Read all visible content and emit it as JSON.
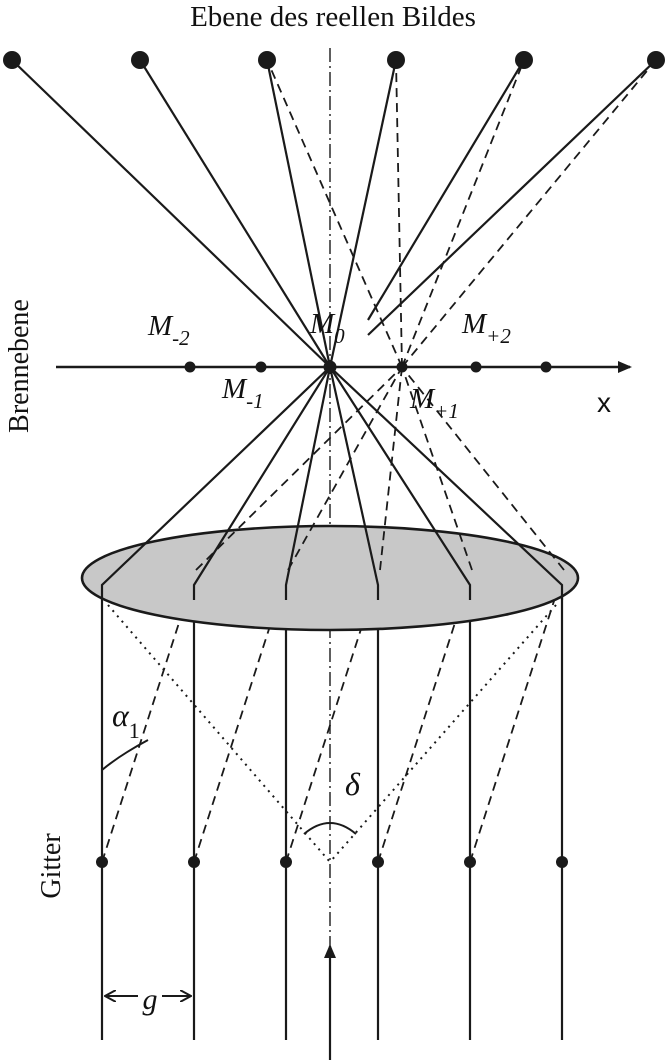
{
  "labels": {
    "image_plane": "Ebene des reellen Bildes",
    "focal_plane": "Brennebene",
    "grating": "Gitter",
    "x_axis": "x",
    "m_minus2": {
      "base": "M",
      "sub": "-2"
    },
    "m_minus1": {
      "base": "M",
      "sub": "-1"
    },
    "m_zero": {
      "base": "M",
      "sub": "0"
    },
    "m_plus1": {
      "base": "M",
      "sub": "+1"
    },
    "m_plus2": {
      "base": "M",
      "sub": "+2"
    },
    "alpha": {
      "base": "α",
      "sub": "1"
    },
    "delta": "δ",
    "period": "g"
  },
  "colors": {
    "line": "#1a1a1a",
    "lens_fill": "#c8c8c8"
  }
}
